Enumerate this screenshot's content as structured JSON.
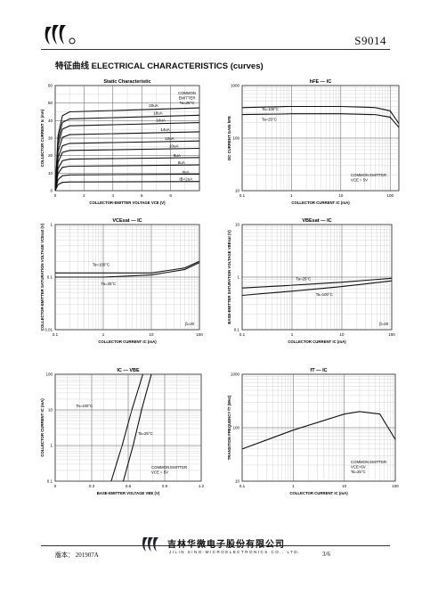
{
  "header": {
    "part_number": "S9014"
  },
  "section_title": "特征曲线   ELECTRICAL CHARACTERISTICS (curves)",
  "footer": {
    "version": "版本：  201907A",
    "company_cn": "吉林华微电子股份有限公司",
    "company_en": "JILIN SINO-MICROELECTRONICS CO., LTD.",
    "page": "3/6"
  },
  "charts": {
    "static": {
      "title": "Static Characteristic",
      "ylabel": "COLLECTOR CURRENT  Ic  (mA)",
      "xlabel": "COLLECTOR-EMITTER VOLTAGE  VCE  (V)",
      "note": [
        "COMMON",
        "EMITTER",
        "Ta=25°C"
      ],
      "xticks": [
        "0",
        "2",
        "4",
        "6",
        "8"
      ],
      "yticks": [
        "0",
        "10",
        "20",
        "30",
        "40",
        "50",
        "60"
      ],
      "curve_labels": [
        "20uA",
        "18uA",
        "16uA",
        "14uA",
        "12uA",
        "10uA",
        "8uA",
        "6uA",
        "4uA",
        "IB=2uA"
      ]
    },
    "hfe": {
      "title": "hFE  —  IC",
      "ylabel": "DC CURRENT GAIN  hFE",
      "xlabel": "COLLECTOR CURRENT  IC  (mA)",
      "note": [
        "COMMON EMITTER",
        "VCE = 5V"
      ],
      "series_labels": [
        "Ta=100°C",
        "Ta=25°C"
      ],
      "xticks": [
        "0.1",
        "1",
        "10",
        "100"
      ],
      "yticks": [
        "10",
        "100",
        "1000"
      ]
    },
    "vcesat": {
      "title": "VCEsat  —  IC",
      "ylabel": "COLLECTOR-EMITTER SATURATION VOLTAGE  VCEsat  (V)",
      "xlabel": "COLLECTOR CURRENT  IC  (mA)",
      "note": [
        "β=20"
      ],
      "series_labels": [
        "Ta=100°C",
        "Ta=25°C"
      ],
      "xticks": [
        "0.1",
        "1",
        "10",
        "100"
      ],
      "yticks": [
        "0.01",
        "0.1",
        "1"
      ]
    },
    "vbesat": {
      "title": "VBEsat  —  IC",
      "ylabel": "BASE-EMITTER SATURATION VOLTAGE  VBEsat  (V)",
      "xlabel": "COLLECTOR CURRENT  IC  (mA)",
      "note": [
        "β=20"
      ],
      "series_labels": [
        "Ta=25°C",
        "Ta=100°C"
      ],
      "xticks": [
        "0.1",
        "1",
        "10",
        "100"
      ],
      "yticks": [
        "0.1",
        "1",
        "10"
      ]
    },
    "icvbe": {
      "title": "IC  —  VBE",
      "ylabel": "COLLECTOR CURRENT  IC  (mA)",
      "xlabel": "BASE-EMITTER VOLTAGE  VBE  (V)",
      "note": [
        "COMMON EMITTER",
        "VCE = 5V"
      ],
      "series_labels": [
        "Ta=100°C",
        "Ta=25°C"
      ],
      "xticks": [
        "0",
        "0.3",
        "0.6",
        "0.9",
        "1.2"
      ],
      "yticks": [
        "0.1",
        "1",
        "10",
        "100"
      ]
    },
    "ft": {
      "title": "fT  —  IC",
      "ylabel": "TRANSITION FREQUENCY  fT  (MHz)",
      "xlabel": "COLLECTOR CURRENT  IC  (mA)",
      "note": [
        "COMMON EMITTER",
        "VCE=6V",
        "Ta=25°C"
      ],
      "xticks": [
        "0.1",
        "1",
        "10",
        "100"
      ],
      "yticks": [
        "10",
        "100",
        "1000"
      ]
    }
  },
  "chart_data": [
    {
      "type": "line",
      "title": "Static Characteristic",
      "xlabel": "COLLECTOR-EMITTER VOLTAGE VCE (V)",
      "ylabel": "COLLECTOR CURRENT Ic (mA)",
      "xlim": [
        0,
        10
      ],
      "ylim": [
        0,
        60
      ],
      "series": [
        {
          "name": "20uA",
          "sat": 45
        },
        {
          "name": "18uA",
          "sat": 41
        },
        {
          "name": "16uA",
          "sat": 37
        },
        {
          "name": "14uA",
          "sat": 32
        },
        {
          "name": "12uA",
          "sat": 27
        },
        {
          "name": "10uA",
          "sat": 23
        },
        {
          "name": "8uA",
          "sat": 18
        },
        {
          "name": "6uA",
          "sat": 14
        },
        {
          "name": "4uA",
          "sat": 9
        },
        {
          "name": "IB=2uA",
          "sat": 5
        }
      ]
    },
    {
      "type": "line",
      "title": "hFE — IC",
      "xlabel": "COLLECTOR CURRENT IC (mA)",
      "ylabel": "DC CURRENT GAIN hFE",
      "xscale": "log",
      "yscale": "log",
      "xlim": [
        0.1,
        150
      ],
      "ylim": [
        10,
        1000
      ],
      "series": [
        {
          "name": "Ta=100°C",
          "x": [
            0.1,
            1,
            10,
            50,
            100,
            150
          ],
          "y": [
            380,
            400,
            400,
            380,
            330,
            190
          ]
        },
        {
          "name": "Ta=25°C",
          "x": [
            0.1,
            1,
            10,
            50,
            100,
            150
          ],
          "y": [
            280,
            290,
            290,
            280,
            250,
            160
          ]
        }
      ]
    },
    {
      "type": "line",
      "title": "VCEsat — IC",
      "xlabel": "COLLECTOR CURRENT IC (mA)",
      "ylabel": "VCEsat (V)",
      "xscale": "log",
      "yscale": "log",
      "xlim": [
        0.1,
        100
      ],
      "ylim": [
        0.01,
        1
      ],
      "series": [
        {
          "name": "Ta=100°C",
          "x": [
            0.1,
            1,
            10,
            50,
            100
          ],
          "y": [
            0.12,
            0.12,
            0.12,
            0.15,
            0.2
          ]
        },
        {
          "name": "Ta=25°C",
          "x": [
            0.1,
            1,
            10,
            50,
            100
          ],
          "y": [
            0.1,
            0.1,
            0.11,
            0.14,
            0.19
          ]
        }
      ]
    },
    {
      "type": "line",
      "title": "VBEsat — IC",
      "xlabel": "COLLECTOR CURRENT IC (mA)",
      "ylabel": "VBEsat (V)",
      "xscale": "log",
      "yscale": "log",
      "xlim": [
        0.1,
        100
      ],
      "ylim": [
        0.1,
        10
      ],
      "series": [
        {
          "name": "Ta=25°C",
          "x": [
            0.1,
            1,
            10,
            100
          ],
          "y": [
            0.62,
            0.7,
            0.8,
            0.95
          ]
        },
        {
          "name": "Ta=100°C",
          "x": [
            0.1,
            1,
            10,
            100
          ],
          "y": [
            0.45,
            0.54,
            0.66,
            0.85
          ]
        }
      ]
    },
    {
      "type": "line",
      "title": "IC — VBE",
      "xlabel": "BASE-EMITTER VOLTAGE VBE (V)",
      "ylabel": "COLLECTOR CURRENT IC (mA)",
      "yscale": "log",
      "xlim": [
        0,
        1.2
      ],
      "ylim": [
        0.1,
        100
      ],
      "series": [
        {
          "name": "Ta=100°C",
          "x": [
            0.46,
            0.55,
            0.63,
            0.72
          ],
          "y": [
            0.1,
            1,
            10,
            100
          ]
        },
        {
          "name": "Ta=25°C",
          "x": [
            0.56,
            0.64,
            0.71,
            0.79
          ],
          "y": [
            0.1,
            1,
            10,
            100
          ]
        }
      ]
    },
    {
      "type": "line",
      "title": "fT — IC",
      "xlabel": "COLLECTOR CURRENT IC (mA)",
      "ylabel": "TRANSITION FREQUENCY fT (MHz)",
      "xscale": "log",
      "yscale": "log",
      "xlim": [
        0.1,
        100
      ],
      "ylim": [
        10,
        1000
      ],
      "series": [
        {
          "name": "COMMON EMITTER VCE=6V",
          "x": [
            0.1,
            1,
            10,
            20,
            50,
            100
          ],
          "y": [
            40,
            90,
            180,
            200,
            180,
            60
          ]
        }
      ]
    }
  ]
}
